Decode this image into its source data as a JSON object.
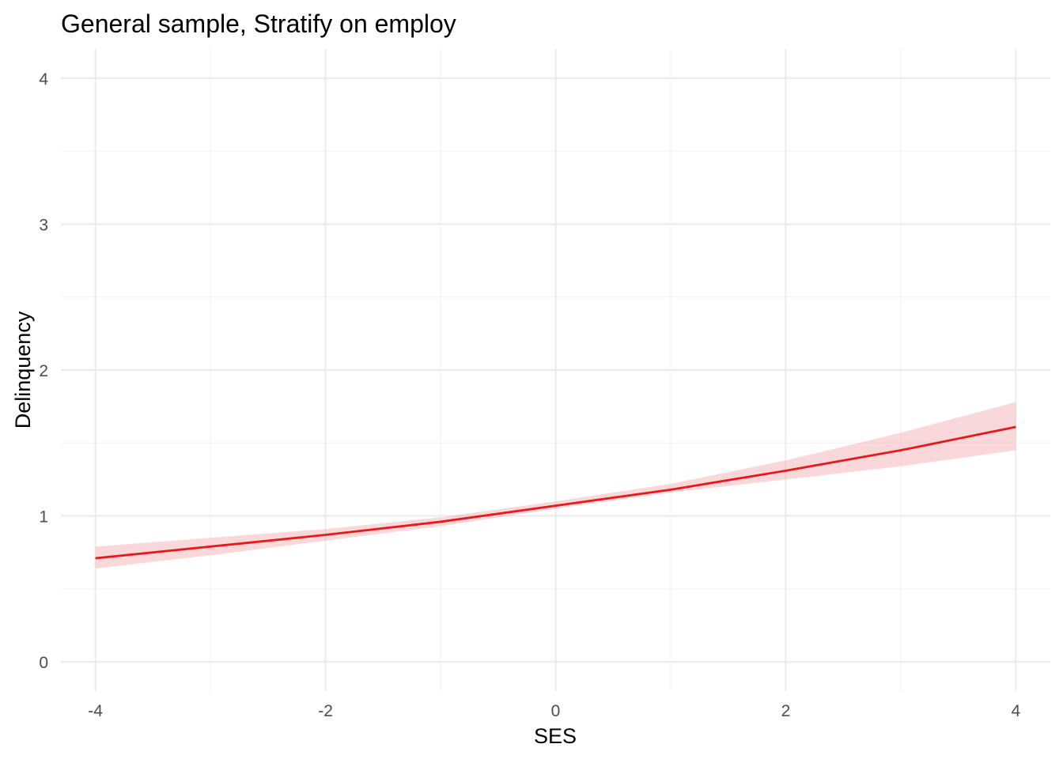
{
  "chart_data": {
    "type": "line",
    "title": "General sample, Stratify on employ",
    "xlabel": "SES",
    "ylabel": "Delinquency",
    "xlim": [
      -4.3,
      4.3
    ],
    "ylim": [
      -0.2,
      4.2
    ],
    "x_ticks": [
      -4,
      -2,
      0,
      2,
      4
    ],
    "x_tick_labels": [
      "-4",
      "-2",
      "0",
      "2",
      "4"
    ],
    "y_ticks": [
      0,
      1,
      2,
      3,
      4
    ],
    "y_tick_labels": [
      "0",
      "1",
      "2",
      "3",
      "4"
    ],
    "x_minor": [
      -3,
      -1,
      1,
      3
    ],
    "y_minor": [
      0.5,
      1.5,
      2.5,
      3.5
    ],
    "grid": true,
    "line_color": "#e41a1c",
    "band_color": "#f4a6aa",
    "series": [
      {
        "x": [
          -4,
          -3,
          -2,
          -1,
          0,
          1,
          2,
          3,
          4
        ],
        "y": [
          0.71,
          0.79,
          0.87,
          0.96,
          1.07,
          1.18,
          1.31,
          1.45,
          1.61
        ],
        "lower": [
          0.64,
          0.73,
          0.83,
          0.93,
          1.05,
          1.16,
          1.25,
          1.34,
          1.45
        ],
        "upper": [
          0.79,
          0.85,
          0.91,
          0.99,
          1.1,
          1.22,
          1.38,
          1.57,
          1.78
        ]
      }
    ]
  }
}
